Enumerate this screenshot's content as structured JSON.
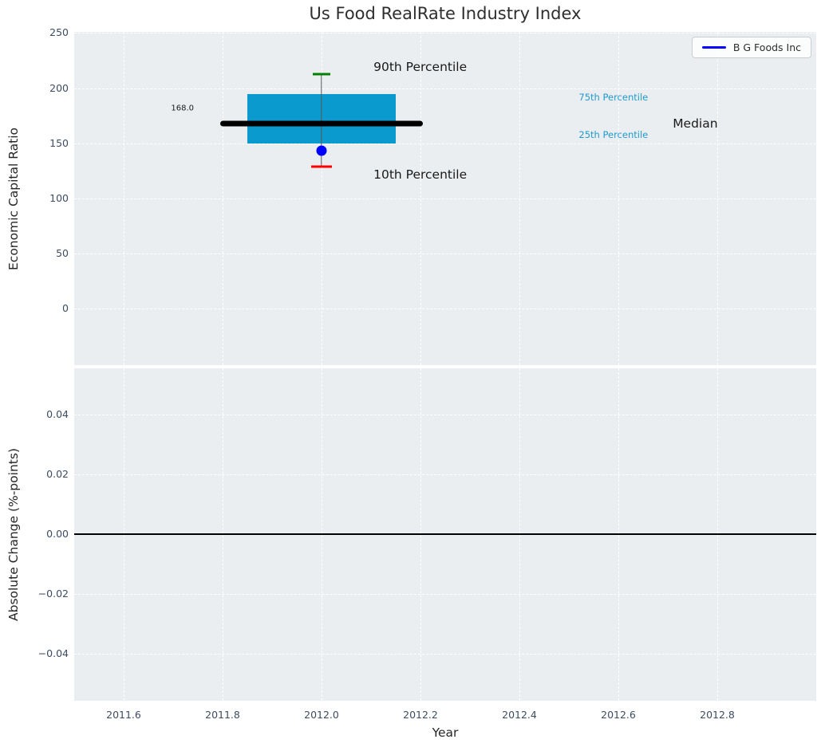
{
  "title": "Us Food RealRate Industry Index",
  "legend": {
    "label": "B G Foods Inc",
    "line_color": "#0000ff"
  },
  "colors": {
    "axes_background": "#ebeef0",
    "grid": "#ffffff",
    "tick_label": "#3d4c63",
    "axis_label": "#262626",
    "box_fill": "#0a9acd",
    "median_line": "#000000",
    "p90_cap": "#008000",
    "p10_cap": "#ff0000",
    "company_point": "#0000ff",
    "percentile_label": "#1e9bce",
    "zero_line": "#000000"
  },
  "chart_data": [
    {
      "type": "boxplot",
      "title": "Us Food RealRate Industry Index",
      "ylabel": "Economic Capital Ratio",
      "xlim": [
        2011.5,
        2013.0
      ],
      "ylim": [
        -51,
        251
      ],
      "xtick_values": [
        2011.6,
        2011.8,
        2012.0,
        2012.2,
        2012.4,
        2012.6,
        2012.8
      ],
      "xtick_labels": [
        "2011.6",
        "2011.8",
        "2012.0",
        "2012.2",
        "2012.4",
        "2012.6",
        "2012.8"
      ],
      "ytick_values": [
        0,
        50,
        100,
        150,
        200,
        250
      ],
      "ytick_labels": [
        "0",
        "50",
        "100",
        "150",
        "200",
        "250"
      ],
      "grid": true,
      "legend_position": "upper right",
      "box": {
        "center_x": 2012.0,
        "box_halfwidth": 0.15,
        "median_halfwidth": 0.205,
        "p90": 213,
        "p75": 195,
        "median": 168.0,
        "p25": 150,
        "p10": 129,
        "median_label": "168.0"
      },
      "company_point": {
        "label": "B G Foods Inc",
        "x": 2012.0,
        "value": 143
      },
      "annotations": [
        {
          "text": "90th Percentile",
          "x": 2012.105,
          "y": 219,
          "color": "#1a1a1a",
          "size": 15.5,
          "anchor": "left"
        },
        {
          "text": "10th Percentile",
          "x": 2012.105,
          "y": 122,
          "color": "#1a1a1a",
          "size": 15.5,
          "anchor": "left"
        },
        {
          "text": "75th Percentile",
          "x": 2012.52,
          "y": 192,
          "color": "#1e9bce",
          "size": 11.5,
          "anchor": "left"
        },
        {
          "text": "25th Percentile",
          "x": 2012.52,
          "y": 158,
          "color": "#1e9bce",
          "size": 11.5,
          "anchor": "left"
        },
        {
          "text": "Median",
          "x": 2012.71,
          "y": 168,
          "color": "#1a1a1a",
          "size": 15.5,
          "anchor": "left"
        },
        {
          "text": "168.0",
          "x": 2011.742,
          "y": 182,
          "color": "#1a1a1a",
          "size": 10,
          "anchor": "right"
        }
      ]
    },
    {
      "type": "line",
      "ylabel": "Absolute Change (%-points)",
      "xlabel": "Year",
      "xlim": [
        2011.5,
        2013.0
      ],
      "ylim": [
        -0.0557,
        0.0555
      ],
      "xtick_values": [
        2011.6,
        2011.8,
        2012.0,
        2012.2,
        2012.4,
        2012.6,
        2012.8
      ],
      "xtick_labels": [
        "2011.6",
        "2011.8",
        "2012.0",
        "2012.2",
        "2012.4",
        "2012.6",
        "2012.8"
      ],
      "ytick_values": [
        -0.04,
        -0.02,
        0.0,
        0.02,
        0.04
      ],
      "ytick_labels": [
        "−0.04",
        "−0.02",
        "0.00",
        "0.02",
        "0.04"
      ],
      "grid": true,
      "zero_line_y": 0.0,
      "series": []
    }
  ]
}
